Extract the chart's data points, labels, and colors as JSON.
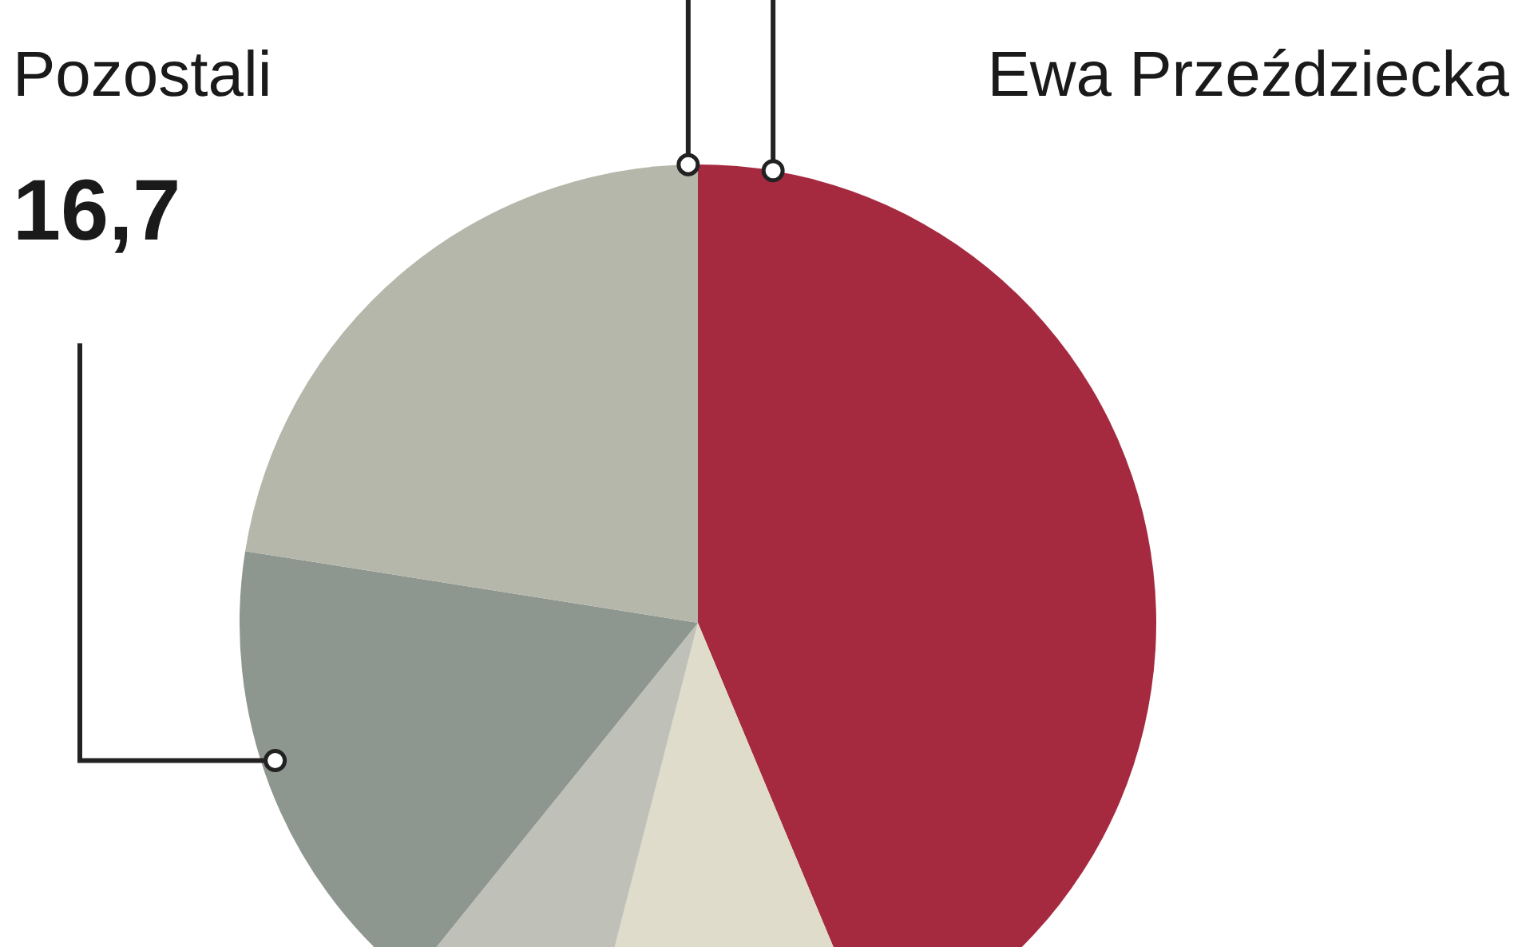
{
  "chart_data": {
    "type": "pie",
    "categories": [
      "Ewa Przeździecka",
      null,
      null,
      null,
      "Pozostali"
    ],
    "values": [
      43.7,
      10.3,
      6.8,
      16.7,
      22.5
    ],
    "colors": [
      "#a52a40",
      "#e0dccb",
      "#bfc1b8",
      "#8e9690",
      "#b5b7aa"
    ],
    "value_labels": [
      null,
      null,
      null,
      "16,7",
      null
    ],
    "legend": false
  }
}
